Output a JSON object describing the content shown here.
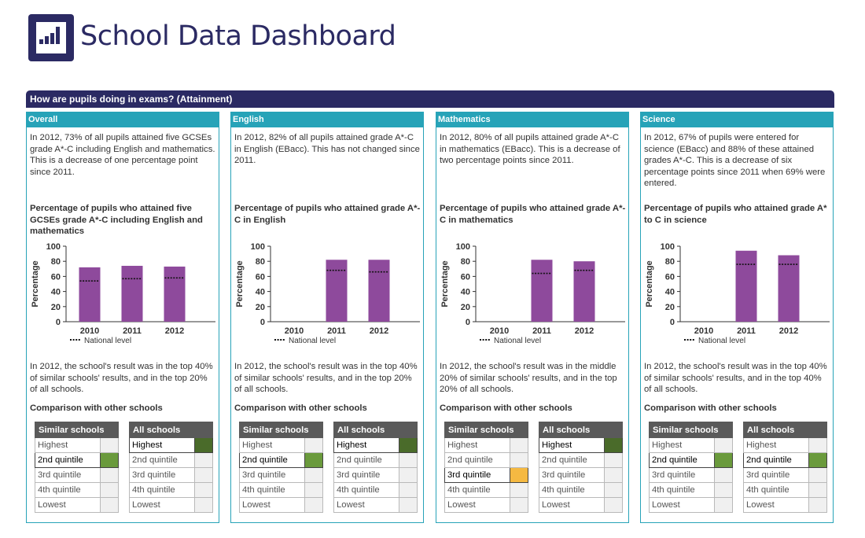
{
  "header": {
    "site_title": "School Data Dashboard",
    "banner": "How are pupils doing in exams? (Attainment)"
  },
  "colors": {
    "navy": "#2b2a63",
    "teal": "#27a3b8",
    "bar": "#8e4a9c",
    "highest": "#4a6b2a",
    "second": "#6a9a3c",
    "middle": "#f5b942"
  },
  "axis": {
    "ylabel": "Percentage",
    "yticks": [
      "0",
      "20",
      "40",
      "60",
      "80",
      "100"
    ],
    "legend": "National level",
    "ylim": [
      0,
      100
    ]
  },
  "comparison_title": "Comparison with other schools",
  "quintiles": [
    "Highest",
    "2nd quintile",
    "3rd quintile",
    "4th quintile",
    "Lowest"
  ],
  "panels": [
    {
      "title": "Overall",
      "intro": "In 2012, 73% of all pupils attained five GCSEs grade A*-C including English and mathematics. This is a decrease of one percentage point since 2011.",
      "chart_title": "Percentage of pupils who attained five GCSEs grade A*-C including English and mathematics",
      "result": "In 2012, the school's result was in the top 40% of similar schools' results, and in the top 20% of all schools.",
      "similar_header": "Similar schools",
      "all_header": "All schools",
      "similar_index": 1,
      "similar_color": "#6a9a3c",
      "all_index": 0,
      "all_color": "#4a6b2a",
      "chart_data": {
        "type": "bar",
        "categories": [
          "2010",
          "2011",
          "2012"
        ],
        "values": [
          72,
          74,
          73
        ],
        "national": [
          54,
          57,
          58
        ],
        "ylabel": "Percentage",
        "ylim": [
          0,
          100
        ]
      }
    },
    {
      "title": "English",
      "intro": "In 2012, 82% of all pupils attained grade A*-C in English (EBacc). This has not changed since 2011.",
      "chart_title": "Percentage of pupils who attained grade A*-C in English",
      "result": "In 2012, the school's result was in the top 40% of similar schools' results, and in the top 20% of all schools.",
      "similar_header": "Similar schools",
      "all_header": "All schools",
      "similar_index": 1,
      "similar_color": "#6a9a3c",
      "all_index": 0,
      "all_color": "#4a6b2a",
      "chart_data": {
        "type": "bar",
        "categories": [
          "2010",
          "2011",
          "2012"
        ],
        "values": [
          0,
          82,
          82
        ],
        "national": [
          null,
          68,
          66
        ],
        "ylabel": "Percentage",
        "ylim": [
          0,
          100
        ]
      }
    },
    {
      "title": "Mathematics",
      "intro": "In 2012, 80% of all pupils attained grade A*-C in mathematics (EBacc). This is a decrease of two percentage points since 2011.",
      "chart_title": "Percentage of pupils who attained grade A*-C in mathematics",
      "result": "In 2012, the school's result was in the middle 20% of similar schools' results, and in the top 20% of all schools.",
      "similar_header": "Similar schools",
      "all_header": "All schools",
      "similar_index": 2,
      "similar_color": "#f5b942",
      "all_index": 0,
      "all_color": "#4a6b2a",
      "chart_data": {
        "type": "bar",
        "categories": [
          "2010",
          "2011",
          "2012"
        ],
        "values": [
          0,
          82,
          80
        ],
        "national": [
          null,
          64,
          68
        ],
        "ylabel": "Percentage",
        "ylim": [
          0,
          100
        ]
      }
    },
    {
      "title": "Science",
      "intro": "In 2012, 67% of pupils were entered for science (EBacc) and 88% of these attained grades A*-C. This is a decrease of six percentage points since 2011 when 69% were entered.",
      "chart_title": "Percentage of pupils who attained grade A* to C in science",
      "result": "In 2012, the school's result was in the top 40% of similar schools' results, and in the top 40% of all schools.",
      "similar_header": "Similar schools",
      "all_header": "All schools",
      "similar_index": 1,
      "similar_color": "#6a9a3c",
      "all_index": 1,
      "all_color": "#6a9a3c",
      "chart_data": {
        "type": "bar",
        "categories": [
          "2010",
          "2011",
          "2012"
        ],
        "values": [
          0,
          94,
          88
        ],
        "national": [
          null,
          76,
          76
        ],
        "ylabel": "Percentage",
        "ylim": [
          0,
          100
        ]
      }
    }
  ]
}
